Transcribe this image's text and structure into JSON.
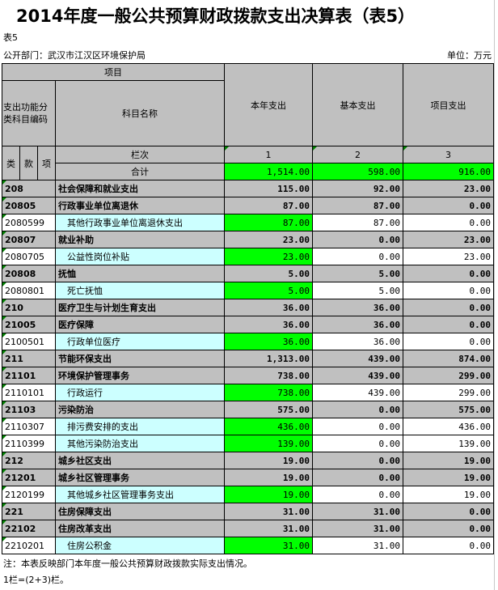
{
  "title": "2014年度一般公共预算财政拨款支出决算表（表5）",
  "table_no": "表5",
  "department": "公开部门：武汉市江汉区环境保护局",
  "unit": "单位：万元",
  "header": {
    "project": "项目",
    "code_label": "支出功能分类科目编码",
    "name_label": "科目名称",
    "col1": "本年支出",
    "col2": "基本支出",
    "col3": "项目支出",
    "lei": "类",
    "kuan": "款",
    "xiang": "项",
    "lanci": "栏次",
    "n1": "1",
    "n2": "2",
    "n3": "3",
    "total_label": "合计"
  },
  "total": {
    "c1": "1,514.00",
    "c2": "598.00",
    "c3": "916.00"
  },
  "rows": [
    {
      "code": "208",
      "name": "社会保障和就业支出",
      "c1": "115.00",
      "c2": "92.00",
      "c3": "23.00",
      "leaf": false
    },
    {
      "code": "20805",
      "name": "行政事业单位离退休",
      "c1": "87.00",
      "c2": "87.00",
      "c3": "0.00",
      "leaf": false
    },
    {
      "code": "2080599",
      "name": "其他行政事业单位离退休支出",
      "c1": "87.00",
      "c2": "87.00",
      "c3": "0.00",
      "leaf": true
    },
    {
      "code": "20807",
      "name": "就业补助",
      "c1": "23.00",
      "c2": "0.00",
      "c3": "23.00",
      "leaf": false
    },
    {
      "code": "2080705",
      "name": "公益性岗位补贴",
      "c1": "23.00",
      "c2": "0.00",
      "c3": "23.00",
      "leaf": true
    },
    {
      "code": "20808",
      "name": "抚恤",
      "c1": "5.00",
      "c2": "5.00",
      "c3": "0.00",
      "leaf": false
    },
    {
      "code": "2080801",
      "name": "死亡抚恤",
      "c1": "5.00",
      "c2": "5.00",
      "c3": "0.00",
      "leaf": true
    },
    {
      "code": "210",
      "name": "医疗卫生与计划生育支出",
      "c1": "36.00",
      "c2": "36.00",
      "c3": "0.00",
      "leaf": false
    },
    {
      "code": "21005",
      "name": "医疗保障",
      "c1": "36.00",
      "c2": "36.00",
      "c3": "0.00",
      "leaf": false
    },
    {
      "code": "2100501",
      "name": "行政单位医疗",
      "c1": "36.00",
      "c2": "36.00",
      "c3": "0.00",
      "leaf": true
    },
    {
      "code": "211",
      "name": "节能环保支出",
      "c1": "1,313.00",
      "c2": "439.00",
      "c3": "874.00",
      "leaf": false
    },
    {
      "code": "21101",
      "name": "环境保护管理事务",
      "c1": "738.00",
      "c2": "439.00",
      "c3": "299.00",
      "leaf": false
    },
    {
      "code": "2110101",
      "name": "行政运行",
      "c1": "738.00",
      "c2": "439.00",
      "c3": "299.00",
      "leaf": true
    },
    {
      "code": "21103",
      "name": "污染防治",
      "c1": "575.00",
      "c2": "0.00",
      "c3": "575.00",
      "leaf": false
    },
    {
      "code": "2110307",
      "name": "排污费安排的支出",
      "c1": "436.00",
      "c2": "0.00",
      "c3": "436.00",
      "leaf": true
    },
    {
      "code": "2110399",
      "name": "其他污染防治支出",
      "c1": "139.00",
      "c2": "0.00",
      "c3": "139.00",
      "leaf": true
    },
    {
      "code": "212",
      "name": "城乡社区支出",
      "c1": "19.00",
      "c2": "0.00",
      "c3": "19.00",
      "leaf": false
    },
    {
      "code": "21201",
      "name": "城乡社区管理事务",
      "c1": "19.00",
      "c2": "0.00",
      "c3": "19.00",
      "leaf": false
    },
    {
      "code": "2120199",
      "name": "其他城乡社区管理事务支出",
      "c1": "19.00",
      "c2": "0.00",
      "c3": "19.00",
      "leaf": true
    },
    {
      "code": "221",
      "name": "住房保障支出",
      "c1": "31.00",
      "c2": "31.00",
      "c3": "0.00",
      "leaf": false
    },
    {
      "code": "22102",
      "name": "住房改革支出",
      "c1": "31.00",
      "c2": "31.00",
      "c3": "0.00",
      "leaf": false
    },
    {
      "code": "2210201",
      "name": "住房公积金",
      "c1": "31.00",
      "c2": "31.00",
      "c3": "0.00",
      "leaf": true
    }
  ],
  "notes": [
    "注：本表反映部门本年度一般公共预算财政拨款实际支出情况。",
    "1栏=(2+3)栏。"
  ],
  "colors": {
    "header_gray": "#c0c0c0",
    "highlight_green": "#00ff00",
    "leaf_name_cyan": "#ccffff"
  }
}
